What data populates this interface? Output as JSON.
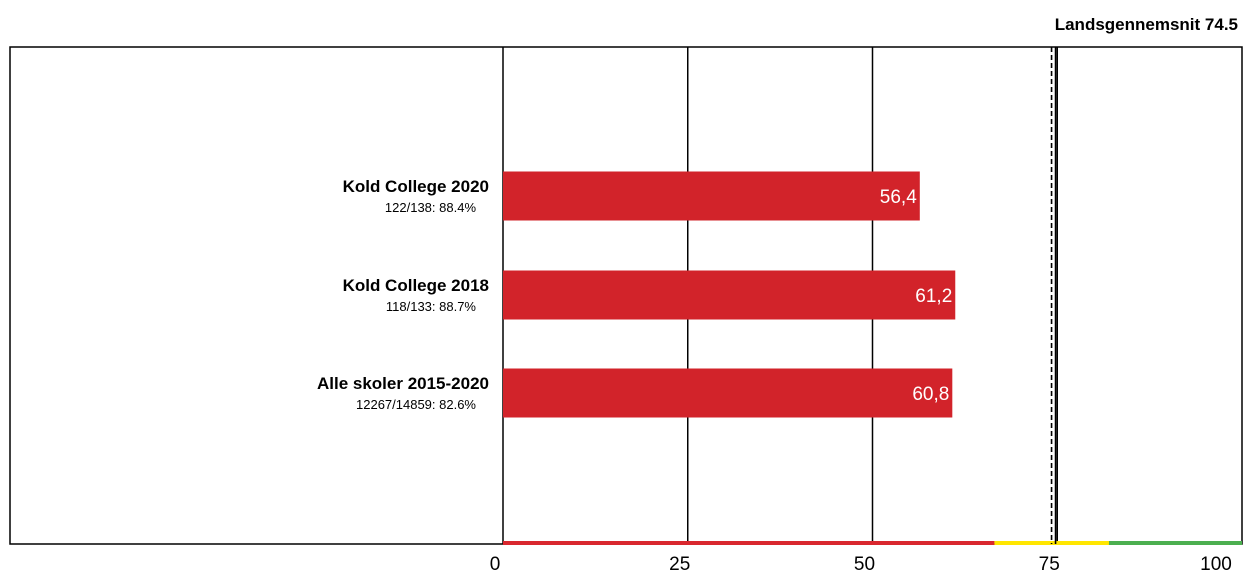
{
  "chart_data": {
    "type": "bar",
    "orientation": "horizontal",
    "categories": [
      "Kold College 2020",
      "Kold College 2018",
      "Alle skoler 2015-2020"
    ],
    "sublabels": [
      "122/138: 88.4%",
      "118/133: 88.7%",
      "12267/14859: 82.6%"
    ],
    "values": [
      56.4,
      61.2,
      60.8
    ],
    "value_labels": [
      "56,4",
      "61,2",
      "60,8"
    ],
    "xlim": [
      0,
      100
    ],
    "xticks": [
      0,
      25,
      50,
      75,
      100
    ],
    "xtick_labels": [
      "0",
      "25",
      "50",
      "75",
      "100"
    ],
    "grid": true,
    "reference_line": {
      "label": "Landsgennemsnit 74.5",
      "value": 74.5
    },
    "color_bands": [
      {
        "from": 0,
        "to": 66.5,
        "color": "#d9272e"
      },
      {
        "from": 66.5,
        "to": 82,
        "color": "#ffe600"
      },
      {
        "from": 82,
        "to": 100,
        "color": "#4caf50"
      }
    ],
    "bar_color": "#d2232a",
    "value_label_color": "#ffffff"
  }
}
